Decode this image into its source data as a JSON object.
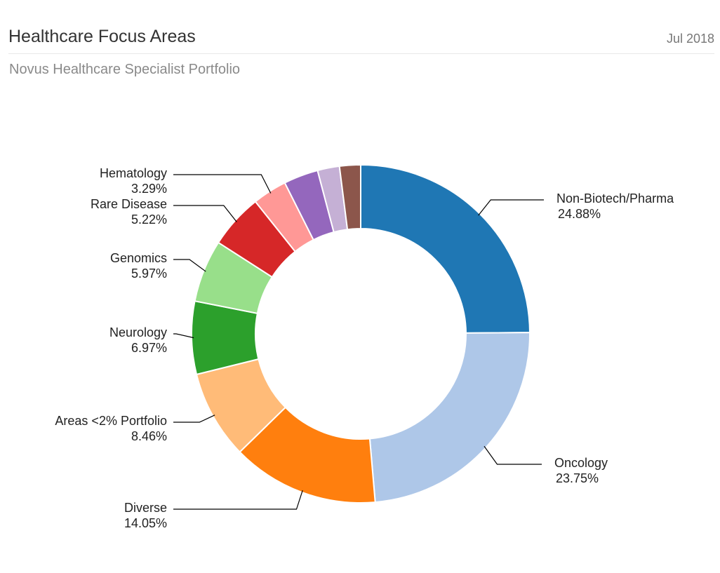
{
  "header": {
    "title": "Healthcare Focus Areas",
    "date": "Jul 2018"
  },
  "subtitle": "Novus Healthcare Specialist Portfolio",
  "chart_data": {
    "type": "pie",
    "donut": true,
    "slices": [
      {
        "label": "Non-Biotech/Pharma",
        "value": 24.88,
        "value_label": "24.88%",
        "color": "#1f77b4"
      },
      {
        "label": "Oncology",
        "value": 23.75,
        "value_label": "23.75%",
        "color": "#aec7e8"
      },
      {
        "label": "Diverse",
        "value": 14.05,
        "value_label": "14.05%",
        "color": "#ff7f0e"
      },
      {
        "label": "Areas <2% Portfolio",
        "value": 8.46,
        "value_label": "8.46%",
        "color": "#ffbb78"
      },
      {
        "label": "Neurology",
        "value": 6.97,
        "value_label": "6.97%",
        "color": "#2ca02c"
      },
      {
        "label": "Genomics",
        "value": 5.97,
        "value_label": "5.97%",
        "color": "#98df8a"
      },
      {
        "label": "Rare Disease",
        "value": 5.22,
        "value_label": "5.22%",
        "color": "#d62728"
      },
      {
        "label": "Hematology",
        "value": 3.29,
        "value_label": "3.29%",
        "color": "#ff9896"
      },
      {
        "label": "",
        "value": 3.3,
        "value_label": "",
        "color": "#9467bd"
      },
      {
        "label": "",
        "value": 2.1,
        "value_label": "",
        "color": "#c5b0d5"
      },
      {
        "label": "",
        "value": 2.01,
        "value_label": "",
        "color": "#8c564b"
      }
    ]
  }
}
